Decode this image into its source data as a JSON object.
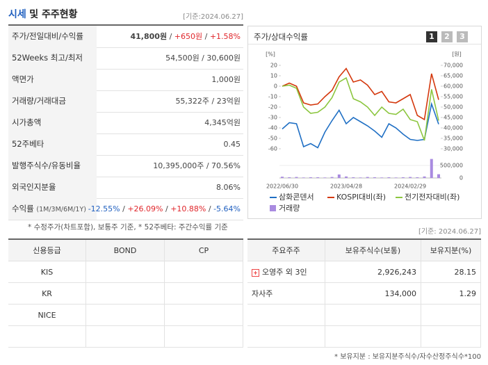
{
  "header": {
    "title_a": "시세",
    "title_b": "및 주주현황",
    "date": "[기준:2024.06.27]"
  },
  "price_table": {
    "sep": " / ",
    "rows": [
      {
        "label": "주가/전일대비/수익률",
        "parts": [
          "41,800원",
          "+650원",
          "+1.58%"
        ]
      },
      {
        "label": "52Weeks 최고/최저",
        "parts": [
          "54,500원",
          "30,600원"
        ]
      },
      {
        "label": "액면가",
        "parts": [
          "1,000원"
        ]
      },
      {
        "label": "거래량/거래대금",
        "parts": [
          "55,322주",
          "23억원"
        ]
      },
      {
        "label": "시가총액",
        "parts": [
          "4,345억원"
        ]
      },
      {
        "label": "52주베타",
        "parts": [
          "0.45"
        ]
      },
      {
        "label": "발행주식수/유동비율",
        "parts": [
          "10,395,000주",
          "70.56%"
        ]
      },
      {
        "label": "외국인지분율",
        "parts": [
          "8.06%"
        ]
      },
      {
        "label": "수익률",
        "label_sub": "(1M/3M/6M/1Y)",
        "parts": [
          "-12.55%",
          "+26.09%",
          "+10.88%",
          "-5.64%"
        ]
      }
    ],
    "note": "* 수정주가(차트포함), 보통주 기준, * 52주베타: 주간수익률 기준"
  },
  "chart": {
    "type": "line",
    "title": "주가/상대수익률",
    "buttons": [
      "1",
      "2",
      "3"
    ],
    "y_label": "[%]",
    "y2_label": "[원]",
    "ylim": [
      -60,
      20
    ],
    "yticks": [
      20,
      10,
      0,
      -10,
      -20,
      -30,
      -40,
      -50,
      -60
    ],
    "y2lim": [
      30000,
      70000
    ],
    "y2ticks": [
      {
        "value": 70000,
        "label": "70,000"
      },
      {
        "value": 65000,
        "label": "65,000"
      },
      {
        "value": 60000,
        "label": "60,000"
      },
      {
        "value": 55000,
        "label": "55,000"
      },
      {
        "value": 50000,
        "label": "50,000"
      },
      {
        "value": 45000,
        "label": "45,000"
      },
      {
        "value": 40000,
        "label": "40,000"
      },
      {
        "value": 35000,
        "label": "35,000"
      },
      {
        "value": 30000,
        "label": "30,000"
      }
    ],
    "vol_ticks": [
      {
        "value": 500000,
        "label": "500,000"
      },
      0
    ],
    "categories": [
      "2022/06/30",
      null,
      null,
      null,
      null,
      null,
      null,
      null,
      null,
      "2023/04/28",
      null,
      null,
      null,
      null,
      null,
      null,
      null,
      null,
      "2024/02/29",
      null,
      null,
      null,
      null
    ],
    "series": [
      {
        "name": "삼화콘덴서",
        "color": "#1f6fc4",
        "axis": "y2",
        "values": [
          39500,
          42500,
          42000,
          31000,
          32500,
          30500,
          38000,
          43500,
          48500,
          42000,
          45000,
          43000,
          41000,
          38500,
          35500,
          42000,
          40000,
          37000,
          34500,
          34000,
          34500,
          51500,
          41800
        ]
      },
      {
        "name": "KOSPI대비(좌)",
        "color": "#d4380d",
        "values": [
          0,
          3,
          0,
          -16,
          -18,
          -17,
          -10,
          -4,
          9,
          17,
          4,
          6,
          1,
          -8,
          -5,
          -15,
          -16,
          -12,
          -8,
          -28,
          -32,
          12,
          -13
        ]
      },
      {
        "name": "전기전자대비(좌)",
        "color": "#8cc63f",
        "values": [
          0,
          1,
          -2,
          -20,
          -26,
          -25,
          -20,
          -11,
          4,
          8,
          -12,
          -15,
          -20,
          -28,
          -20,
          -26,
          -27,
          -22,
          -32,
          -34,
          -52,
          -3,
          -33
        ]
      }
    ],
    "volume": {
      "name": "거래량",
      "color": "#a98be0",
      "values": [
        50000,
        30000,
        40000,
        20000,
        30000,
        30000,
        20000,
        40000,
        140000,
        60000,
        30000,
        20000,
        40000,
        30000,
        20000,
        30000,
        20000,
        30000,
        40000,
        30000,
        60000,
        760000,
        150000
      ]
    }
  },
  "date2": "[기준: 2024.06.27]",
  "credit_table": {
    "headers": [
      "신용등급",
      "BOND",
      "CP"
    ],
    "agencies": [
      "KIS",
      "KR",
      "NICE"
    ]
  },
  "holders_table": {
    "headers": [
      "주요주주",
      "보유주식수(보통)",
      "보유지분(%)"
    ],
    "rows": [
      [
        "오영주 외 3인",
        "2,926,243",
        "28.15"
      ],
      [
        "자사주",
        "134,000",
        "1.29"
      ]
    ],
    "note": "* 보유지분 : 보유지분주식수/자수산정주식수*100"
  }
}
